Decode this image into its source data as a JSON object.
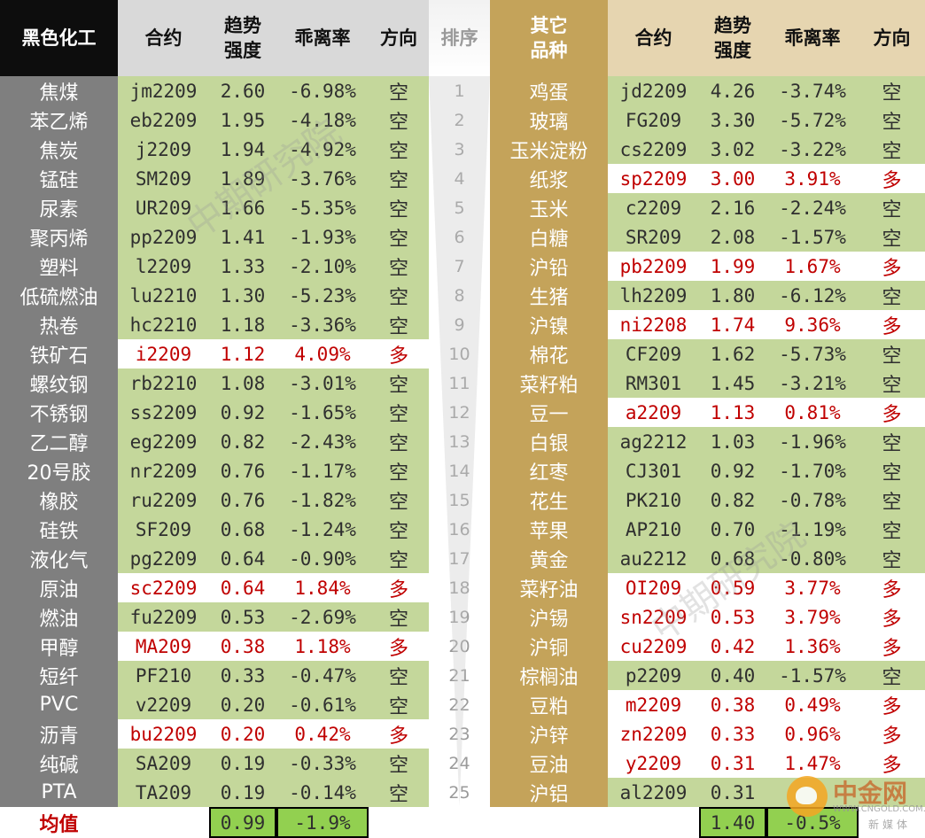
{
  "headers": {
    "left_category": "黑色化工",
    "contract": "合约",
    "trend": "趋势\n强度",
    "deviation": "乖离率",
    "direction": "方向",
    "rank": "排序",
    "right_category": "其它\n品种"
  },
  "rows": [
    {
      "rank": "1",
      "left": {
        "name": "焦煤",
        "contract": "jm2209",
        "trend": "2.60",
        "dev": "-6.98%",
        "dir": "空"
      },
      "right": {
        "name": "鸡蛋",
        "contract": "jd2209",
        "trend": "4.26",
        "dev": "-3.74%",
        "dir": "空"
      }
    },
    {
      "rank": "2",
      "left": {
        "name": "苯乙烯",
        "contract": "eb2209",
        "trend": "1.95",
        "dev": "-4.18%",
        "dir": "空"
      },
      "right": {
        "name": "玻璃",
        "contract": "FG209",
        "trend": "3.30",
        "dev": "-5.72%",
        "dir": "空"
      }
    },
    {
      "rank": "3",
      "left": {
        "name": "焦炭",
        "contract": "j2209",
        "trend": "1.94",
        "dev": "-4.92%",
        "dir": "空"
      },
      "right": {
        "name": "玉米淀粉",
        "contract": "cs2209",
        "trend": "3.02",
        "dev": "-3.22%",
        "dir": "空"
      }
    },
    {
      "rank": "4",
      "left": {
        "name": "锰硅",
        "contract": "SM209",
        "trend": "1.89",
        "dev": "-3.76%",
        "dir": "空"
      },
      "right": {
        "name": "纸浆",
        "contract": "sp2209",
        "trend": "3.00",
        "dev": "3.91%",
        "dir": "多"
      }
    },
    {
      "rank": "5",
      "left": {
        "name": "尿素",
        "contract": "UR209",
        "trend": "1.66",
        "dev": "-5.35%",
        "dir": "空"
      },
      "right": {
        "name": "玉米",
        "contract": "c2209",
        "trend": "2.16",
        "dev": "-2.24%",
        "dir": "空"
      }
    },
    {
      "rank": "6",
      "left": {
        "name": "聚丙烯",
        "contract": "pp2209",
        "trend": "1.41",
        "dev": "-1.93%",
        "dir": "空"
      },
      "right": {
        "name": "白糖",
        "contract": "SR209",
        "trend": "2.08",
        "dev": "-1.57%",
        "dir": "空"
      }
    },
    {
      "rank": "7",
      "left": {
        "name": "塑料",
        "contract": "l2209",
        "trend": "1.33",
        "dev": "-2.10%",
        "dir": "空"
      },
      "right": {
        "name": "沪铅",
        "contract": "pb2209",
        "trend": "1.99",
        "dev": "1.67%",
        "dir": "多"
      }
    },
    {
      "rank": "8",
      "left": {
        "name": "低硫燃油",
        "contract": "lu2210",
        "trend": "1.30",
        "dev": "-5.23%",
        "dir": "空"
      },
      "right": {
        "name": "生猪",
        "contract": "lh2209",
        "trend": "1.80",
        "dev": "-6.12%",
        "dir": "空"
      }
    },
    {
      "rank": "9",
      "left": {
        "name": "热卷",
        "contract": "hc2210",
        "trend": "1.18",
        "dev": "-3.36%",
        "dir": "空"
      },
      "right": {
        "name": "沪镍",
        "contract": "ni2208",
        "trend": "1.74",
        "dev": "9.36%",
        "dir": "多"
      }
    },
    {
      "rank": "10",
      "left": {
        "name": "铁矿石",
        "contract": "i2209",
        "trend": "1.12",
        "dev": "4.09%",
        "dir": "多"
      },
      "right": {
        "name": "棉花",
        "contract": "CF209",
        "trend": "1.62",
        "dev": "-5.73%",
        "dir": "空"
      }
    },
    {
      "rank": "11",
      "left": {
        "name": "螺纹钢",
        "contract": "rb2210",
        "trend": "1.08",
        "dev": "-3.01%",
        "dir": "空"
      },
      "right": {
        "name": "菜籽粕",
        "contract": "RM301",
        "trend": "1.45",
        "dev": "-3.21%",
        "dir": "空"
      }
    },
    {
      "rank": "12",
      "left": {
        "name": "不锈钢",
        "contract": "ss2209",
        "trend": "0.92",
        "dev": "-1.65%",
        "dir": "空"
      },
      "right": {
        "name": "豆一",
        "contract": "a2209",
        "trend": "1.13",
        "dev": "0.81%",
        "dir": "多"
      }
    },
    {
      "rank": "13",
      "left": {
        "name": "乙二醇",
        "contract": "eg2209",
        "trend": "0.82",
        "dev": "-2.43%",
        "dir": "空"
      },
      "right": {
        "name": "白银",
        "contract": "ag2212",
        "trend": "1.03",
        "dev": "-1.96%",
        "dir": "空"
      }
    },
    {
      "rank": "14",
      "left": {
        "name": "20号胶",
        "contract": "nr2209",
        "trend": "0.76",
        "dev": "-1.17%",
        "dir": "空"
      },
      "right": {
        "name": "红枣",
        "contract": "CJ301",
        "trend": "0.92",
        "dev": "-1.70%",
        "dir": "空"
      }
    },
    {
      "rank": "15",
      "left": {
        "name": "橡胶",
        "contract": "ru2209",
        "trend": "0.76",
        "dev": "-1.82%",
        "dir": "空"
      },
      "right": {
        "name": "花生",
        "contract": "PK210",
        "trend": "0.82",
        "dev": "-0.78%",
        "dir": "空"
      }
    },
    {
      "rank": "16",
      "left": {
        "name": "硅铁",
        "contract": "SF209",
        "trend": "0.68",
        "dev": "-1.24%",
        "dir": "空"
      },
      "right": {
        "name": "苹果",
        "contract": "AP210",
        "trend": "0.70",
        "dev": "-1.19%",
        "dir": "空"
      }
    },
    {
      "rank": "17",
      "left": {
        "name": "液化气",
        "contract": "pg2209",
        "trend": "0.64",
        "dev": "-0.90%",
        "dir": "空"
      },
      "right": {
        "name": "黄金",
        "contract": "au2212",
        "trend": "0.68",
        "dev": "-0.80%",
        "dir": "空"
      }
    },
    {
      "rank": "18",
      "left": {
        "name": "原油",
        "contract": "sc2209",
        "trend": "0.64",
        "dev": "1.84%",
        "dir": "多"
      },
      "right": {
        "name": "菜籽油",
        "contract": "OI209",
        "trend": "0.59",
        "dev": "3.77%",
        "dir": "多"
      }
    },
    {
      "rank": "19",
      "left": {
        "name": "燃油",
        "contract": "fu2209",
        "trend": "0.53",
        "dev": "-2.69%",
        "dir": "空"
      },
      "right": {
        "name": "沪锡",
        "contract": "sn2209",
        "trend": "0.53",
        "dev": "3.79%",
        "dir": "多"
      }
    },
    {
      "rank": "20",
      "left": {
        "name": "甲醇",
        "contract": "MA209",
        "trend": "0.38",
        "dev": "1.18%",
        "dir": "多"
      },
      "right": {
        "name": "沪铜",
        "contract": "cu2209",
        "trend": "0.42",
        "dev": "1.36%",
        "dir": "多"
      }
    },
    {
      "rank": "21",
      "left": {
        "name": "短纤",
        "contract": "PF210",
        "trend": "0.33",
        "dev": "-0.47%",
        "dir": "空"
      },
      "right": {
        "name": "棕榈油",
        "contract": "p2209",
        "trend": "0.40",
        "dev": "-1.57%",
        "dir": "空"
      }
    },
    {
      "rank": "22",
      "left": {
        "name": "PVC",
        "contract": "v2209",
        "trend": "0.20",
        "dev": "-0.61%",
        "dir": "空"
      },
      "right": {
        "name": "豆粕",
        "contract": "m2209",
        "trend": "0.38",
        "dev": "0.49%",
        "dir": "多"
      }
    },
    {
      "rank": "23",
      "left": {
        "name": "沥青",
        "contract": "bu2209",
        "trend": "0.20",
        "dev": "0.42%",
        "dir": "多"
      },
      "right": {
        "name": "沪锌",
        "contract": "zn2209",
        "trend": "0.33",
        "dev": "0.96%",
        "dir": "多"
      }
    },
    {
      "rank": "24",
      "left": {
        "name": "纯碱",
        "contract": "SA209",
        "trend": "0.19",
        "dev": "-0.33%",
        "dir": "空"
      },
      "right": {
        "name": "豆油",
        "contract": "y2209",
        "trend": "0.31",
        "dev": "1.47%",
        "dir": "多"
      }
    },
    {
      "rank": "25",
      "left": {
        "name": "PTA",
        "contract": "TA209",
        "trend": "0.19",
        "dev": "-0.14%",
        "dir": "空"
      },
      "right": {
        "name": "沪铝",
        "contract": "al2209",
        "trend": "0.31",
        "dev": "",
        "dir": ""
      }
    }
  ],
  "average": {
    "label": "均值",
    "left_trend": "0.99",
    "left_dev": "-1.9%",
    "right_trend": "1.40",
    "right_dev": "-0.5%"
  },
  "watermark_text": "中期研究院",
  "logo": {
    "name": "中金网",
    "url": "WWW.CNGOLD.COM.CN",
    "subtitle": "新媒体"
  },
  "colors": {
    "short_row_bg": "#c4d79b",
    "long_row_bg": "#ffffff",
    "long_text": "#c00000",
    "left_name_bg": "#7f7f7f",
    "right_name_bg": "#c4a35a",
    "average_box": "#92d050"
  }
}
